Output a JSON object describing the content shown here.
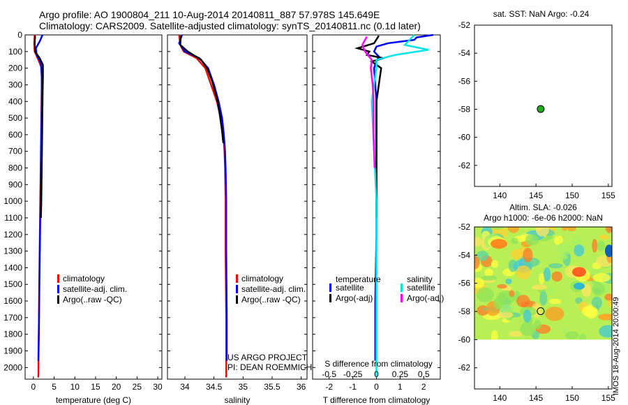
{
  "header": {
    "line1": "Argo profile: AO 1900804_211 10-Aug-2014 20140811_887 57.978S 145.649E",
    "line2": "Climatology: CARS2009. Satellite-adjusted climatology: synTS_20140811.nc (0.1d later)"
  },
  "footer": {
    "project": "US ARGO PROJECT",
    "pi": "PI: DEAN ROEMMICH"
  },
  "side_label": "IMOS 18-Aug-2014 20:00:49",
  "colors": {
    "climatology": "#ff0000",
    "satellite": "#0000ff",
    "argo": "#000000",
    "sal_satellite": "#00e5e5",
    "sal_argo": "#ff00ff"
  },
  "chart_data": [
    {
      "id": "temperature",
      "type": "line",
      "xlabel": "temperature (deg C)",
      "xlim": [
        -2,
        31
      ],
      "xticks": [
        0,
        5,
        10,
        15,
        20,
        25,
        30
      ],
      "ylim": [
        0,
        2070
      ],
      "yticks": [
        0,
        100,
        200,
        300,
        400,
        500,
        600,
        700,
        800,
        900,
        1000,
        1100,
        1200,
        1300,
        1400,
        1500,
        1600,
        1700,
        1800,
        1900,
        2000
      ],
      "legend": [
        "climatology",
        "satellite-adj. clim.",
        "Argo(..raw -QC)"
      ],
      "series": [
        {
          "name": "climatology",
          "color": "#ff0000",
          "x": [
            0.3,
            0.2,
            0.3,
            1.2,
            2.0,
            2.0,
            1.9,
            1.8,
            1.7,
            1.6,
            1.5,
            1.4,
            1.3,
            1.2
          ],
          "y": [
            0,
            50,
            100,
            150,
            200,
            300,
            500,
            700,
            900,
            1100,
            1300,
            1500,
            1800,
            2060
          ]
        },
        {
          "name": "satellite-adj. clim.",
          "color": "#0000ff",
          "x": [
            2.2,
            1.5,
            0.6,
            0.8,
            1.8,
            2.0,
            2.0,
            1.9,
            1.8,
            1.7,
            1.6,
            1.5,
            1.4,
            1.3,
            1.2
          ],
          "y": [
            0,
            40,
            80,
            120,
            170,
            250,
            400,
            600,
            800,
            1000,
            1200,
            1400,
            1600,
            1800,
            1960
          ]
        },
        {
          "name": "Argo(..raw -QC)",
          "color": "#000000",
          "x": [
            0.4,
            0.3,
            0.4,
            1.5,
            2.3,
            2.3,
            2.2,
            2.1,
            2.0,
            1.9,
            1.8
          ],
          "y": [
            5,
            50,
            100,
            140,
            180,
            250,
            400,
            600,
            800,
            1000,
            1100
          ]
        }
      ]
    },
    {
      "id": "salinity",
      "type": "line",
      "xlabel": "salinity",
      "xlim": [
        33.7,
        36.1
      ],
      "xticks": [
        34,
        34.5,
        35,
        35.5,
        36
      ],
      "ylim": [
        0,
        2070
      ],
      "legend": [
        "climatology",
        "satellite-adj. clim.",
        "Argo(..raw -QC)"
      ],
      "series": [
        {
          "name": "climatology",
          "color": "#ff0000",
          "x": [
            33.9,
            33.92,
            33.98,
            34.2,
            34.35,
            34.45,
            34.55,
            34.62,
            34.66,
            34.68,
            34.69,
            34.7,
            34.7,
            34.71,
            34.71
          ],
          "y": [
            0,
            60,
            100,
            140,
            200,
            300,
            400,
            500,
            600,
            700,
            800,
            1000,
            1300,
            1700,
            2060
          ]
        },
        {
          "name": "satellite-adj. clim.",
          "color": "#0000ff",
          "x": [
            33.95,
            33.9,
            34.0,
            34.25,
            34.4,
            34.5,
            34.58,
            34.64,
            34.67,
            34.69,
            34.7,
            34.71,
            34.71,
            34.72,
            34.72
          ],
          "y": [
            0,
            50,
            100,
            140,
            200,
            300,
            400,
            500,
            600,
            700,
            800,
            1000,
            1300,
            1700,
            1960
          ]
        },
        {
          "name": "Argo(..raw -QC)",
          "color": "#000000",
          "x": [
            33.93,
            33.92,
            34.05,
            34.28,
            34.38,
            34.47,
            34.55,
            34.6,
            34.64,
            34.66
          ],
          "y": [
            5,
            60,
            100,
            150,
            200,
            280,
            380,
            480,
            580,
            650
          ]
        }
      ]
    },
    {
      "id": "difference",
      "type": "line",
      "xlabel": "T difference from climatology",
      "xlabel_top": "S difference from climatology",
      "xlim": [
        -2.7,
        2.7
      ],
      "xticks": [
        -2,
        -1,
        0,
        1,
        2
      ],
      "xticks_sal": [
        -0.5,
        -0.25,
        0,
        0.25,
        0.5
      ],
      "sal_scale": 4,
      "ylim": [
        0,
        2070
      ],
      "legend": {
        "temperature_header": "temperature",
        "salinity_header": "salinity",
        "items": [
          "satellite",
          "Argo(-adj)",
          "satellite",
          "Argo(-adj)"
        ]
      },
      "series": [
        {
          "name": "temperature satellite",
          "color": "#0000ff",
          "x": [
            2.4,
            1.7,
            1.6,
            0.5,
            0.0,
            -0.1,
            0.1,
            0.0,
            -0.1,
            0.0,
            0.0,
            0.0,
            -0.05,
            -0.05
          ],
          "y": [
            0,
            15,
            30,
            50,
            70,
            100,
            130,
            160,
            200,
            400,
            800,
            1200,
            1600,
            1960
          ]
        },
        {
          "name": "temperature Argo(-adj)",
          "color": "#000000",
          "x": [
            0.1,
            -0.1,
            -0.8,
            -0.3,
            -0.4,
            0.3,
            -0.2,
            0.2,
            0.0,
            0.0,
            0.0
          ],
          "y": [
            5,
            50,
            80,
            100,
            120,
            140,
            160,
            200,
            400,
            800,
            1100
          ]
        },
        {
          "name": "salinity satellite",
          "color": "#00e5e5",
          "x": [
            0.4,
            0.3,
            0.55,
            0.2,
            0.0,
            0.0,
            -0.05,
            0.0,
            0.0,
            0.0
          ],
          "y": [
            0,
            60,
            90,
            120,
            150,
            200,
            400,
            1000,
            1600,
            2060
          ]
        },
        {
          "name": "salinity Argo(-adj)",
          "color": "#ff00ff",
          "x": [
            -0.1,
            -0.15,
            -0.12,
            -0.05,
            -0.06,
            -0.04,
            -0.03,
            -0.03,
            -0.02
          ],
          "y": [
            10,
            60,
            100,
            150,
            200,
            300,
            400,
            600,
            800
          ]
        }
      ]
    },
    {
      "id": "sst-map",
      "type": "scatter",
      "title": "sat. SST: NaN Argo: -0.24",
      "xlim": [
        136.5,
        155.5
      ],
      "ylim": [
        -63.5,
        -52
      ],
      "xticks": [
        140,
        145,
        150,
        155
      ],
      "yticks": [
        -52,
        -54,
        -56,
        -58,
        -60,
        -62
      ],
      "points": [
        {
          "x": 145.649,
          "y": -57.978,
          "color": "#22aa22"
        }
      ]
    },
    {
      "id": "sla-map",
      "type": "heatmap",
      "title": "Altim. SLA: -0.026",
      "subtitle": "Argo h1000: -6e-06 h2000: NaN",
      "xlim": [
        136.5,
        155.5
      ],
      "ylim": [
        -63.5,
        -52
      ],
      "data_ylim": [
        -60,
        -52
      ],
      "xticks": [
        140,
        145,
        150,
        155
      ],
      "yticks": [
        -52,
        -54,
        -56,
        -58,
        -60,
        -62
      ],
      "points": [
        {
          "x": 145.649,
          "y": -57.978
        }
      ]
    }
  ]
}
